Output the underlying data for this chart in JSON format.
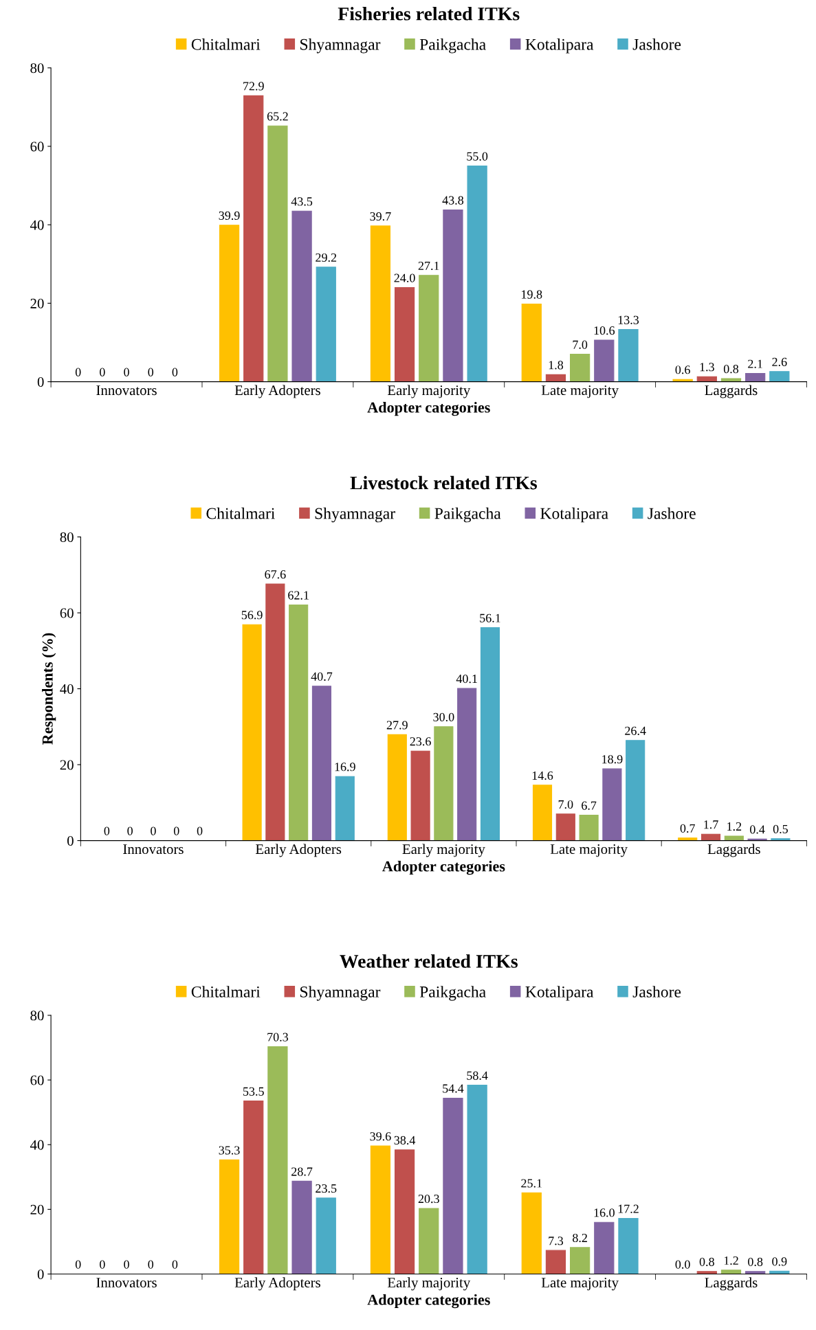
{
  "chart_data": [
    {
      "type": "bar",
      "title": "Fisheries related ITKs",
      "xlabel": "Adopter categories",
      "categories": [
        "Innovators",
        "Early Adopters",
        "Early majority",
        "Late majority",
        "Laggards"
      ],
      "ylim": [
        0,
        80
      ],
      "yticks": [
        0,
        20,
        40,
        60,
        80
      ],
      "legend": "top",
      "grid": false,
      "series": [
        {
          "name": "Chitalmari",
          "color": "#ffc000",
          "values": [
            0,
            39.9,
            39.7,
            19.8,
            0.6
          ],
          "value_labels": [
            "0",
            "39.9",
            "39.7",
            "19.8",
            "0.6"
          ]
        },
        {
          "name": "Shyamnagar",
          "color": "#c0504d",
          "values": [
            0,
            72.9,
            24.0,
            1.8,
            1.3
          ],
          "value_labels": [
            "0",
            "72.9",
            "24.0",
            "1.8",
            "1.3"
          ]
        },
        {
          "name": "Paikgacha",
          "color": "#9bbb59",
          "values": [
            0,
            65.2,
            27.1,
            7.0,
            0.8
          ],
          "value_labels": [
            "0",
            "65.2",
            "27.1",
            "7.0",
            "0.8"
          ]
        },
        {
          "name": "Kotalipara",
          "color": "#8064a2",
          "values": [
            0,
            43.5,
            43.8,
            10.6,
            2.1
          ],
          "value_labels": [
            "0",
            "43.5",
            "43.8",
            "10.6",
            "2.1"
          ]
        },
        {
          "name": "Jashore",
          "color": "#4bacc6",
          "values": [
            0,
            29.2,
            55.0,
            13.3,
            2.6
          ],
          "value_labels": [
            "0",
            "29.2",
            "55.0",
            "13.3",
            "2.6"
          ]
        }
      ]
    },
    {
      "type": "bar",
      "title": "Livestock related ITKs",
      "xlabel": "Adopter categories",
      "ylabel": "Respondents (%)",
      "categories": [
        "Innovators",
        "Early Adopters",
        "Early majority",
        "Late majority",
        "Laggards"
      ],
      "ylim": [
        0,
        80
      ],
      "yticks": [
        0,
        20,
        40,
        60,
        80
      ],
      "legend": "top",
      "grid": false,
      "series": [
        {
          "name": "Chitalmari",
          "color": "#ffc000",
          "values": [
            0,
            56.9,
            27.9,
            14.6,
            0.7
          ],
          "value_labels": [
            "0",
            "56.9",
            "27.9",
            "14.6",
            "0.7"
          ]
        },
        {
          "name": "Shyamnagar",
          "color": "#c0504d",
          "values": [
            0,
            67.6,
            23.6,
            7.0,
            1.7
          ],
          "value_labels": [
            "0",
            "67.6",
            "23.6",
            "7.0",
            "1.7"
          ]
        },
        {
          "name": "Paikgacha",
          "color": "#9bbb59",
          "values": [
            0,
            62.1,
            30.0,
            6.7,
            1.2
          ],
          "value_labels": [
            "0",
            "62.1",
            "30.0",
            "6.7",
            "1.2"
          ]
        },
        {
          "name": "Kotalipara",
          "color": "#8064a2",
          "values": [
            0,
            40.7,
            40.1,
            18.9,
            0.4
          ],
          "value_labels": [
            "0",
            "40.7",
            "40.1",
            "18.9",
            "0.4"
          ]
        },
        {
          "name": "Jashore",
          "color": "#4bacc6",
          "values": [
            0,
            16.9,
            56.1,
            26.4,
            0.5
          ],
          "value_labels": [
            "0",
            "16.9",
            "56.1",
            "26.4",
            "0.5"
          ]
        }
      ]
    },
    {
      "type": "bar",
      "title": "Weather related ITKs",
      "xlabel": "Adopter categories",
      "categories": [
        "Innovators",
        "Early Adopters",
        "Early majority",
        "Late majority",
        "Laggards"
      ],
      "ylim": [
        0,
        80
      ],
      "yticks": [
        0,
        20,
        40,
        60,
        80
      ],
      "legend": "top",
      "grid": false,
      "series": [
        {
          "name": "Chitalmari",
          "color": "#ffc000",
          "values": [
            0,
            35.3,
            39.6,
            25.1,
            0.0
          ],
          "value_labels": [
            "0",
            "35.3",
            "39.6",
            "25.1",
            "0.0"
          ]
        },
        {
          "name": "Shyamnagar",
          "color": "#c0504d",
          "values": [
            0,
            53.5,
            38.4,
            7.3,
            0.8
          ],
          "value_labels": [
            "0",
            "53.5",
            "38.4",
            "7.3",
            "0.8"
          ]
        },
        {
          "name": "Paikgacha",
          "color": "#9bbb59",
          "values": [
            0,
            70.3,
            20.3,
            8.2,
            1.2
          ],
          "value_labels": [
            "0",
            "70.3",
            "20.3",
            "8.2",
            "1.2"
          ]
        },
        {
          "name": "Kotalipara",
          "color": "#8064a2",
          "values": [
            0,
            28.7,
            54.4,
            16.0,
            0.8
          ],
          "value_labels": [
            "0",
            "28.7",
            "54.4",
            "16.0",
            "0.8"
          ]
        },
        {
          "name": "Jashore",
          "color": "#4bacc6",
          "values": [
            0,
            23.5,
            58.4,
            17.2,
            0.9
          ],
          "value_labels": [
            "0",
            "23.5",
            "58.4",
            "17.2",
            "0.9"
          ]
        }
      ]
    }
  ]
}
